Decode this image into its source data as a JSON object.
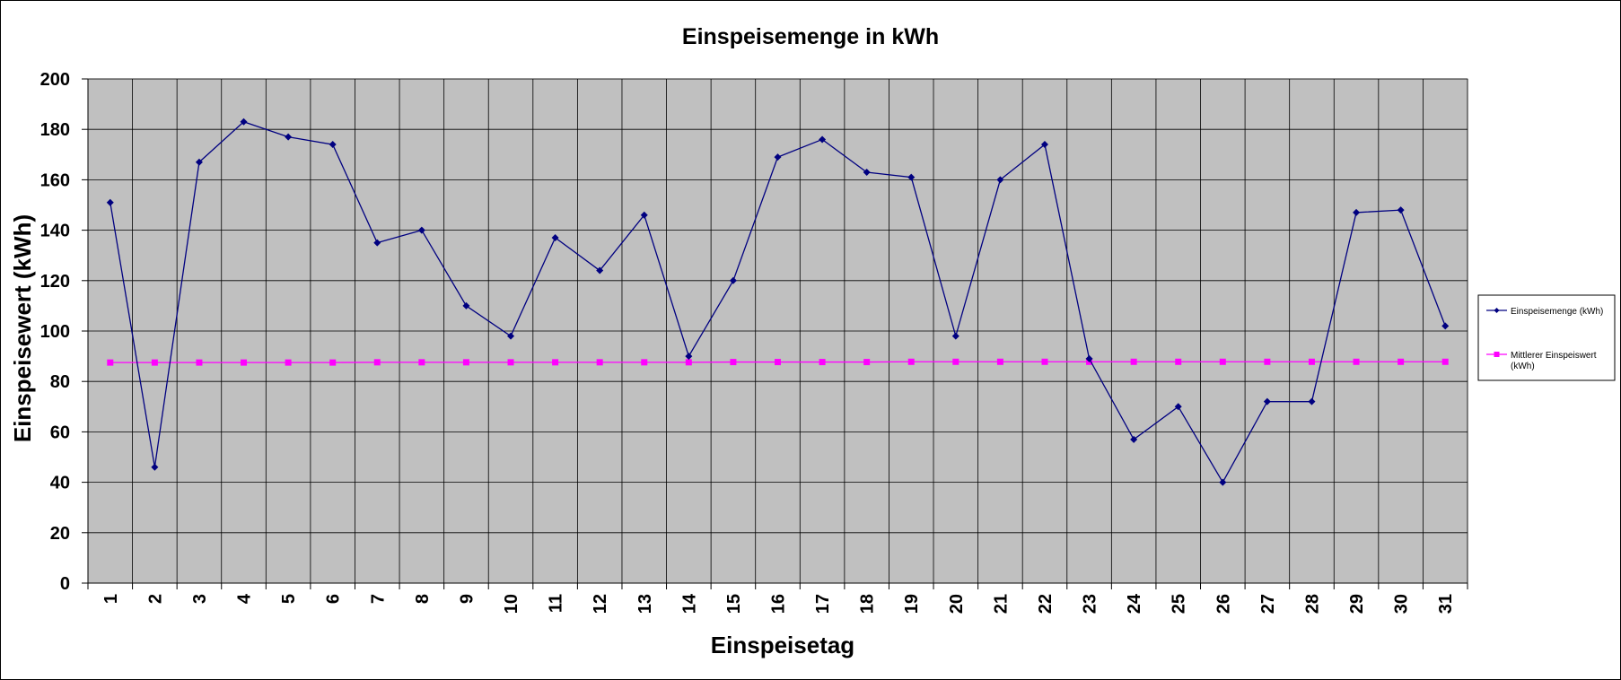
{
  "chart_data": {
    "type": "line",
    "title": "Einspeisemenge in kWh",
    "xlabel": "Einspeisetag",
    "ylabel": "Einspeisewert  (kWh)",
    "categories": [
      "1",
      "2",
      "3",
      "4",
      "5",
      "6",
      "7",
      "8",
      "9",
      "10",
      "11",
      "12",
      "13",
      "14",
      "15",
      "16",
      "17",
      "18",
      "19",
      "20",
      "21",
      "22",
      "23",
      "24",
      "25",
      "26",
      "27",
      "28",
      "29",
      "30",
      "31"
    ],
    "ylim": [
      0,
      200
    ],
    "yticks": [
      "0",
      "20",
      "40",
      "60",
      "80",
      "100",
      "120",
      "140",
      "160",
      "180",
      "200"
    ],
    "grid": true,
    "legend_position": "right",
    "plot_background": "#c0c0c0",
    "series": [
      {
        "name": "Einspeisemenge (kWh)",
        "color": "#000080",
        "marker": "diamond",
        "values": [
          151,
          46,
          167,
          183,
          177,
          174,
          135,
          140,
          110,
          98,
          137,
          124,
          146,
          90,
          120,
          169,
          176,
          163,
          161,
          98,
          160,
          174,
          89,
          57,
          70,
          40,
          72,
          72,
          147,
          148,
          102
        ]
      },
      {
        "name": "Mittlerer Einspeiswert (kWh)",
        "name_lines": [
          "Mittlerer Einspeiswert",
          "(kWh)"
        ],
        "color": "#ff00ff",
        "marker": "square",
        "values": [
          87.5,
          87.5,
          87.5,
          87.5,
          87.5,
          87.5,
          87.6,
          87.6,
          87.6,
          87.6,
          87.6,
          87.6,
          87.6,
          87.6,
          87.7,
          87.7,
          87.7,
          87.7,
          87.8,
          87.8,
          87.8,
          87.8,
          87.8,
          87.8,
          87.8,
          87.8,
          87.8,
          87.8,
          87.8,
          87.8,
          87.8
        ]
      }
    ]
  }
}
